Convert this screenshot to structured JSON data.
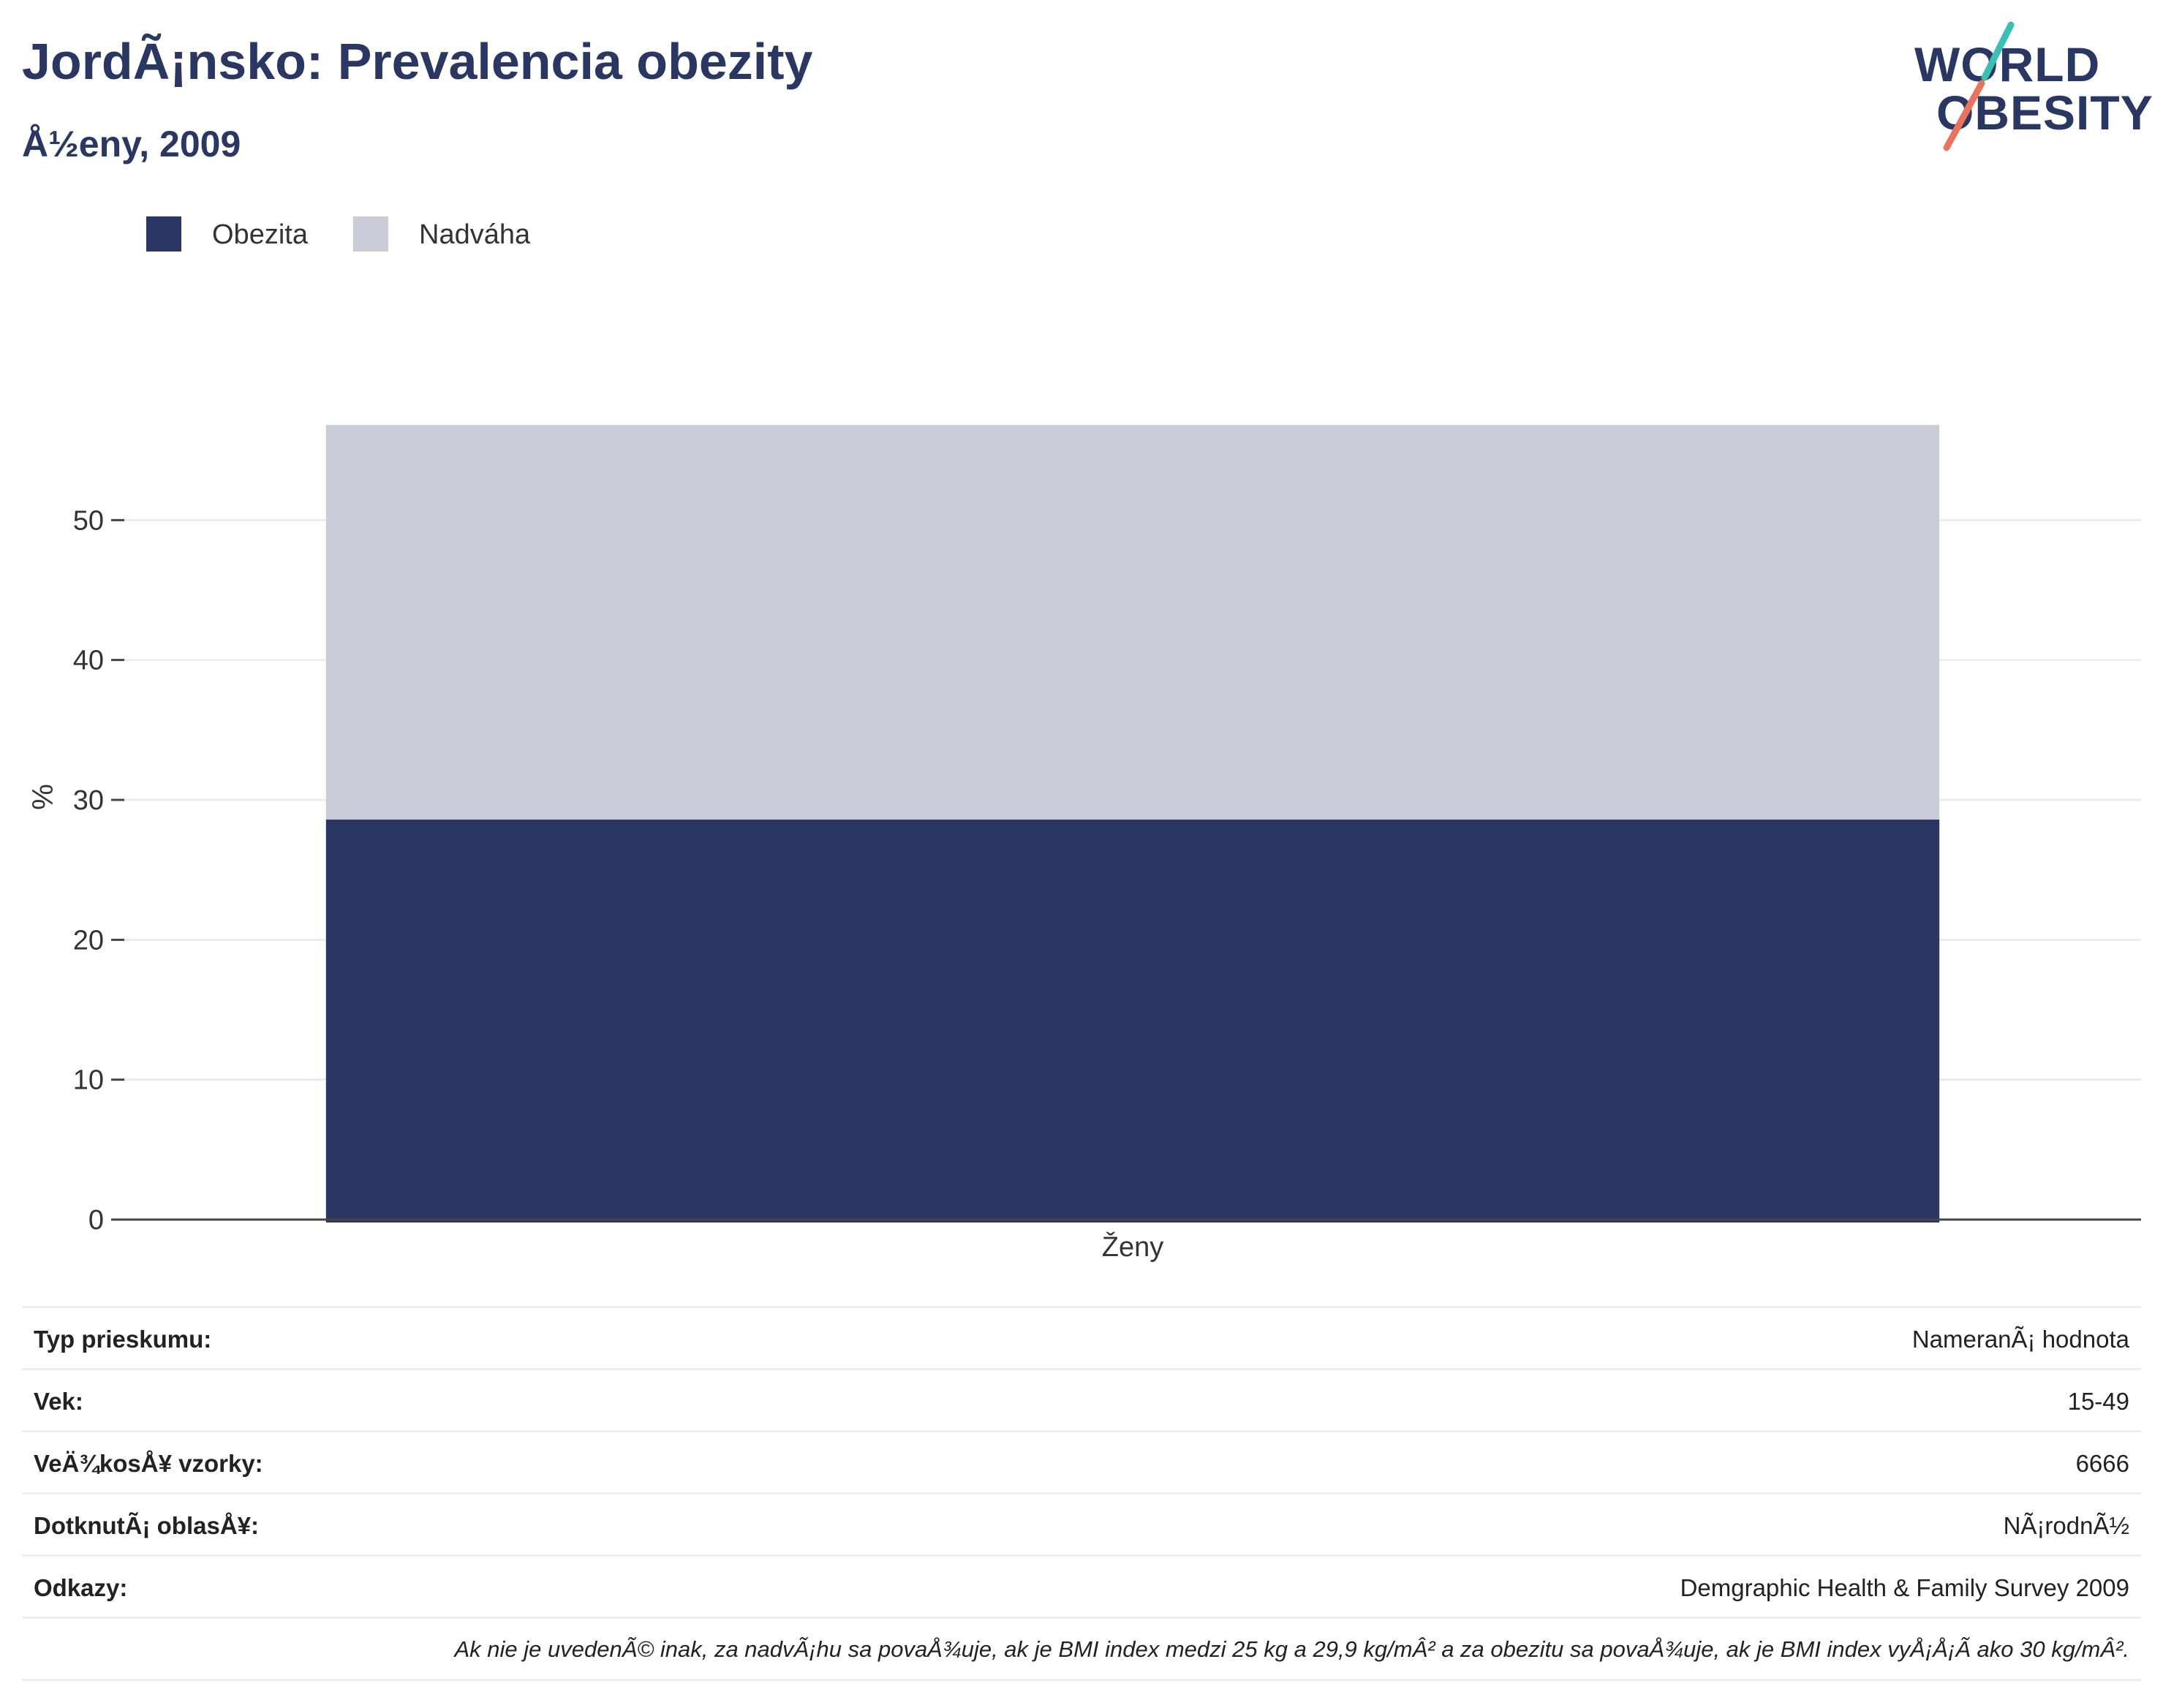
{
  "header": {
    "title": "JordÃ¡nsko: Prevalencia obezity",
    "subtitle": "Å½eny, 2009"
  },
  "logo": {
    "line1": "WORLD",
    "line2": "OBESITY",
    "colors": {
      "text": "#2b3763",
      "slash_top": "#3bbfb4",
      "slash_bottom": "#e8735f"
    }
  },
  "legend": {
    "items": [
      {
        "label": "Obezita",
        "color": "#2b3763"
      },
      {
        "label": "Nadváha",
        "color": "#cacdd8"
      }
    ]
  },
  "chart_data": {
    "type": "bar",
    "stacked": true,
    "categories": [
      "Ženy"
    ],
    "series": [
      {
        "name": "Obezita",
        "values": [
          28.6
        ],
        "color": "#2b3763"
      },
      {
        "name": "Nadváha",
        "values": [
          28.2
        ],
        "color": "#cacdd8"
      }
    ],
    "ylabel": "%",
    "ylim": [
      0,
      60
    ],
    "yticks": [
      0,
      10,
      20,
      30,
      40,
      50
    ],
    "grid": true,
    "legend_position": "top-left"
  },
  "info": {
    "rows": [
      {
        "key": "Typ prieskumu:",
        "value": "NameranÃ¡ hodnota"
      },
      {
        "key": "Vek:",
        "value": "15-49"
      },
      {
        "key": "VeÄ¾kosÅ¥ vzorky:",
        "value": "6666"
      },
      {
        "key": "DotknutÃ¡ oblasÅ¥:",
        "value": "NÃ¡rodnÃ½"
      },
      {
        "key": "Odkazy:",
        "value": "Demgraphic Health & Family Survey 2009"
      }
    ],
    "note": "Ak nie je uvedenÃ© inak, za nadvÃ¡hu sa povaÅ¾uje, ak je BMI index medzi 25 kg a 29,9 kg/mÂ² a za obezitu sa povaÅ¾uje, ak je BMI index vyÅ¡Å¡Ã ako 30 kg/mÂ²."
  }
}
